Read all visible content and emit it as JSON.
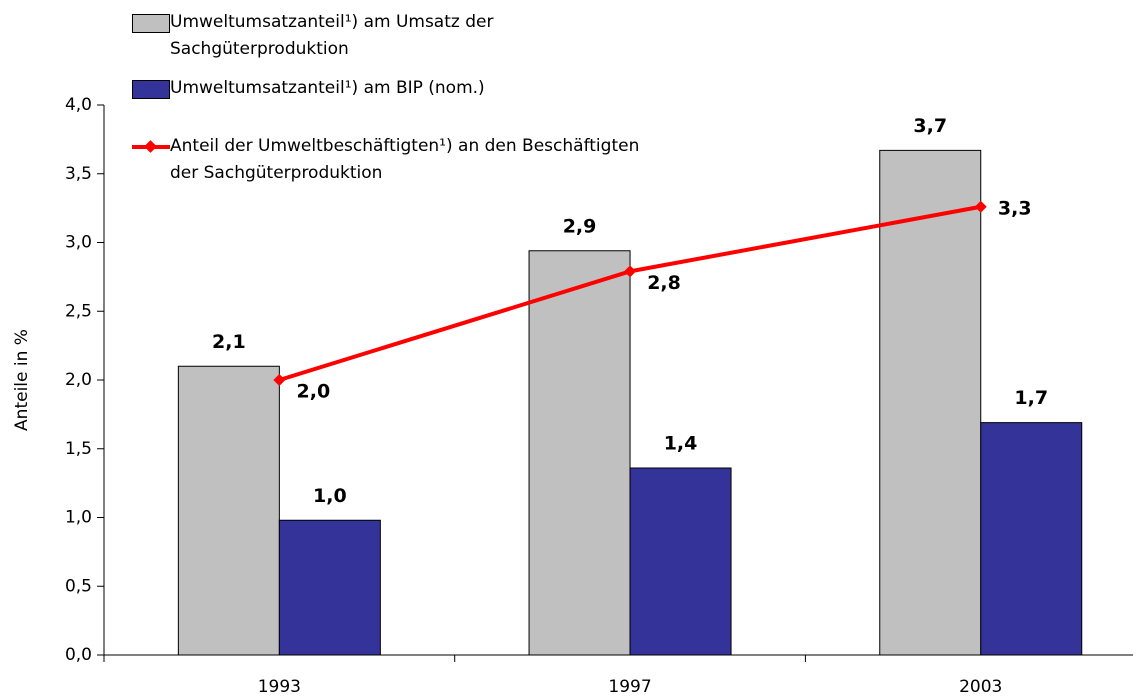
{
  "chart_data": {
    "type": "bar_line",
    "y_label": "Anteile in %",
    "categories": [
      "1993",
      "1997",
      "2003"
    ],
    "series": [
      {
        "name": "Umweltumsatzanteil¹) am Umsatz der Sachgüterproduktion",
        "kind": "bar",
        "color": "#c0c0c0",
        "values": [
          2.1,
          2.94,
          3.67
        ],
        "value_labels": [
          "2,1",
          "2,9",
          "3,7"
        ]
      },
      {
        "name": "Umweltumsatzanteil¹) am BIP (nom.)",
        "kind": "bar",
        "color": "#333399",
        "values": [
          0.98,
          1.36,
          1.69
        ],
        "value_labels": [
          "1,0",
          "1,4",
          "1,7"
        ]
      },
      {
        "name": "Anteil der Umweltbeschäftigten¹) an den Beschäftigten der Sachgüterproduktion",
        "kind": "line",
        "color": "#ff0000",
        "values": [
          2.0,
          2.79,
          3.26
        ],
        "value_labels": [
          "2,0",
          "2,8",
          "3,3"
        ]
      }
    ],
    "ylim": [
      0,
      4
    ],
    "yticks": [
      {
        "value": 0,
        "label": "0,0"
      },
      {
        "value": 0.5,
        "label": "0,5"
      },
      {
        "value": 1,
        "label": "1,0"
      },
      {
        "value": 1.5,
        "label": "1,5"
      },
      {
        "value": 2,
        "label": "2,0"
      },
      {
        "value": 2.5,
        "label": "2,5"
      },
      {
        "value": 3,
        "label": "3,0"
      },
      {
        "value": 3.5,
        "label": "3,5"
      },
      {
        "value": 4,
        "label": "4,0"
      }
    ],
    "legend": "top-left"
  }
}
